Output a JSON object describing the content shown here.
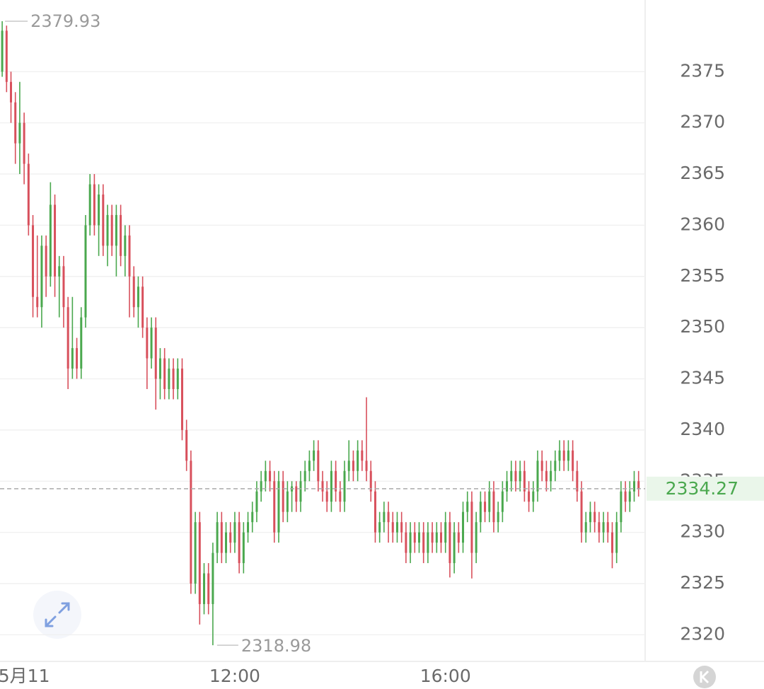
{
  "chart_data": {
    "type": "candlestick",
    "up_color": "#4aa84e",
    "down_color": "#d8505c",
    "ylim": [
      2317.4,
      2382
    ],
    "yticks": [
      2320,
      2325,
      2330,
      2335,
      2340,
      2345,
      2350,
      2355,
      2360,
      2365,
      2370,
      2375
    ],
    "xlim": [
      -0.5,
      146.5
    ],
    "xticks": [
      {
        "value": 5,
        "label": "5月11"
      },
      {
        "value": 53,
        "label": "12:00"
      },
      {
        "value": 101,
        "label": "16:00"
      }
    ],
    "grid": true,
    "ohlc": [
      [
        2375,
        2379.93,
        2374.5,
        2379
      ],
      [
        2379,
        2379.5,
        2373,
        2374
      ],
      [
        2374,
        2375,
        2370,
        2372
      ],
      [
        2372,
        2373,
        2366,
        2368
      ],
      [
        2368,
        2374,
        2365,
        2370
      ],
      [
        2370,
        2371,
        2364,
        2366
      ],
      [
        2366,
        2367,
        2359,
        2360
      ],
      [
        2360,
        2361,
        2351,
        2353
      ],
      [
        2353,
        2359,
        2351,
        2352
      ],
      [
        2352,
        2359,
        2350,
        2358
      ],
      [
        2358,
        2359,
        2353,
        2355
      ],
      [
        2355,
        2364.2,
        2354,
        2362
      ],
      [
        2362,
        2363,
        2353,
        2355
      ],
      [
        2355,
        2357,
        2351,
        2356
      ],
      [
        2356,
        2357,
        2350,
        2352
      ],
      [
        2352,
        2353,
        2344,
        2346
      ],
      [
        2346,
        2353,
        2345,
        2348
      ],
      [
        2348,
        2349,
        2345,
        2346
      ],
      [
        2346,
        2352,
        2345,
        2351
      ],
      [
        2351,
        2361,
        2350,
        2360
      ],
      [
        2360,
        2365,
        2359,
        2364
      ],
      [
        2364,
        2365,
        2359,
        2360
      ],
      [
        2360,
        2364,
        2357,
        2363
      ],
      [
        2363,
        2364,
        2357,
        2358
      ],
      [
        2358,
        2362,
        2356,
        2361
      ],
      [
        2361,
        2362,
        2357,
        2358
      ],
      [
        2358,
        2362,
        2355,
        2361
      ],
      [
        2361,
        2362,
        2356,
        2357
      ],
      [
        2357,
        2360,
        2355,
        2359
      ],
      [
        2359,
        2360,
        2351,
        2355
      ],
      [
        2355,
        2356,
        2351,
        2352
      ],
      [
        2352,
        2355,
        2350,
        2354
      ],
      [
        2354,
        2355,
        2349,
        2350
      ],
      [
        2350,
        2351,
        2344,
        2347
      ],
      [
        2347,
        2351,
        2346,
        2350
      ],
      [
        2350,
        2351,
        2342,
        2345
      ],
      [
        2345,
        2348,
        2343,
        2347
      ],
      [
        2347,
        2348,
        2343,
        2344
      ],
      [
        2344,
        2347,
        2343,
        2346
      ],
      [
        2346,
        2347,
        2343,
        2344
      ],
      [
        2344,
        2347,
        2343,
        2346
      ],
      [
        2346,
        2347,
        2339,
        2340
      ],
      [
        2340,
        2341,
        2336,
        2337
      ],
      [
        2337,
        2338,
        2324,
        2325
      ],
      [
        2325,
        2332,
        2324,
        2331
      ],
      [
        2331,
        2332,
        2321,
        2323
      ],
      [
        2323,
        2327,
        2322,
        2326
      ],
      [
        2326,
        2327,
        2322,
        2323
      ],
      [
        2323,
        2329,
        2318.98,
        2328
      ],
      [
        2328,
        2332,
        2327,
        2331
      ],
      [
        2331,
        2332,
        2327,
        2328
      ],
      [
        2328,
        2331,
        2327,
        2330
      ],
      [
        2330,
        2331,
        2328,
        2329
      ],
      [
        2329,
        2332,
        2328,
        2331
      ],
      [
        2331,
        2332,
        2326,
        2327
      ],
      [
        2327,
        2331,
        2326,
        2330
      ],
      [
        2330,
        2332,
        2329,
        2331
      ],
      [
        2331,
        2333,
        2330,
        2332
      ],
      [
        2332,
        2335,
        2331,
        2334
      ],
      [
        2334,
        2336,
        2333,
        2335
      ],
      [
        2335,
        2337,
        2334,
        2336
      ],
      [
        2336,
        2337,
        2334,
        2335
      ],
      [
        2335,
        2336,
        2329,
        2330
      ],
      [
        2330,
        2336,
        2329,
        2335
      ],
      [
        2335,
        2336,
        2331,
        2332
      ],
      [
        2332,
        2335,
        2331,
        2334
      ],
      [
        2334,
        2335,
        2332,
        2334.5
      ],
      [
        2334.5,
        2335,
        2332,
        2333
      ],
      [
        2333,
        2336,
        2332,
        2335
      ],
      [
        2335,
        2337,
        2334,
        2336
      ],
      [
        2336,
        2338,
        2335,
        2337
      ],
      [
        2337,
        2339,
        2336,
        2338
      ],
      [
        2338,
        2339,
        2334,
        2335
      ],
      [
        2335,
        2336,
        2333,
        2334
      ],
      [
        2334,
        2335,
        2332,
        2333
      ],
      [
        2333,
        2337,
        2332,
        2336
      ],
      [
        2336,
        2337,
        2333,
        2334
      ],
      [
        2334,
        2335,
        2332,
        2333
      ],
      [
        2333,
        2337,
        2332,
        2336
      ],
      [
        2336,
        2339,
        2335,
        2337
      ],
      [
        2337,
        2338,
        2335,
        2336
      ],
      [
        2336,
        2339,
        2335,
        2338
      ],
      [
        2338,
        2339,
        2336,
        2337
      ],
      [
        2337,
        2343.2,
        2335,
        2336
      ],
      [
        2336,
        2337,
        2333,
        2334
      ],
      [
        2334,
        2335,
        2329,
        2330
      ],
      [
        2330,
        2332,
        2329,
        2331
      ],
      [
        2331,
        2333,
        2330,
        2332
      ],
      [
        2332,
        2333,
        2329,
        2331
      ],
      [
        2331,
        2332,
        2329,
        2330
      ],
      [
        2330,
        2332,
        2329,
        2331
      ],
      [
        2331,
        2332,
        2329,
        2330
      ],
      [
        2330,
        2331,
        2327,
        2328
      ],
      [
        2328,
        2331,
        2327,
        2330
      ],
      [
        2330,
        2331,
        2328,
        2329
      ],
      [
        2329,
        2331,
        2328,
        2330
      ],
      [
        2330,
        2331,
        2327,
        2328
      ],
      [
        2328,
        2331,
        2327,
        2330
      ],
      [
        2330,
        2331,
        2328,
        2329
      ],
      [
        2329,
        2331,
        2328,
        2330
      ],
      [
        2330,
        2331,
        2328,
        2329
      ],
      [
        2329,
        2332,
        2328,
        2331
      ],
      [
        2331,
        2332,
        2325.6,
        2327
      ],
      [
        2327,
        2331,
        2326,
        2330
      ],
      [
        2330,
        2331,
        2328,
        2329
      ],
      [
        2329,
        2333,
        2328,
        2332
      ],
      [
        2332,
        2334,
        2331,
        2333
      ],
      [
        2333,
        2334,
        2325.5,
        2328
      ],
      [
        2328,
        2332,
        2327,
        2331
      ],
      [
        2331,
        2334,
        2330,
        2333
      ],
      [
        2333,
        2334,
        2331,
        2332
      ],
      [
        2332,
        2335,
        2331,
        2334
      ],
      [
        2334,
        2335,
        2330,
        2331
      ],
      [
        2331,
        2333,
        2330,
        2332
      ],
      [
        2332,
        2335,
        2331,
        2334
      ],
      [
        2334,
        2336,
        2333,
        2335
      ],
      [
        2335,
        2337,
        2334,
        2336
      ],
      [
        2336,
        2337,
        2334,
        2335
      ],
      [
        2335,
        2337,
        2334,
        2336
      ],
      [
        2336,
        2337,
        2333,
        2334
      ],
      [
        2334,
        2335,
        2332,
        2333
      ],
      [
        2333,
        2335,
        2332,
        2334
      ],
      [
        2334,
        2338,
        2333,
        2337
      ],
      [
        2337,
        2338,
        2335,
        2336
      ],
      [
        2336,
        2337,
        2334,
        2335
      ],
      [
        2335,
        2337,
        2334,
        2336
      ],
      [
        2336,
        2338,
        2335,
        2337
      ],
      [
        2337,
        2339,
        2336,
        2338
      ],
      [
        2338,
        2339,
        2336,
        2337
      ],
      [
        2337,
        2339,
        2336,
        2338
      ],
      [
        2338,
        2339,
        2335,
        2336
      ],
      [
        2336,
        2337,
        2333,
        2334
      ],
      [
        2334,
        2335,
        2329,
        2330
      ],
      [
        2330,
        2332,
        2329,
        2331
      ],
      [
        2331,
        2333,
        2330,
        2332
      ],
      [
        2332,
        2333,
        2330,
        2331
      ],
      [
        2331,
        2332,
        2329,
        2330
      ],
      [
        2330,
        2332,
        2329,
        2331
      ],
      [
        2331,
        2332,
        2329,
        2330
      ],
      [
        2330,
        2331,
        2326.5,
        2328
      ],
      [
        2328,
        2332,
        2327,
        2331
      ],
      [
        2331,
        2335,
        2330,
        2334
      ],
      [
        2334,
        2335,
        2332,
        2333
      ],
      [
        2333,
        2335,
        2332,
        2334
      ],
      [
        2334,
        2336,
        2333,
        2335
      ],
      [
        2335,
        2336,
        2333.5,
        2334.27
      ]
    ]
  }
}
